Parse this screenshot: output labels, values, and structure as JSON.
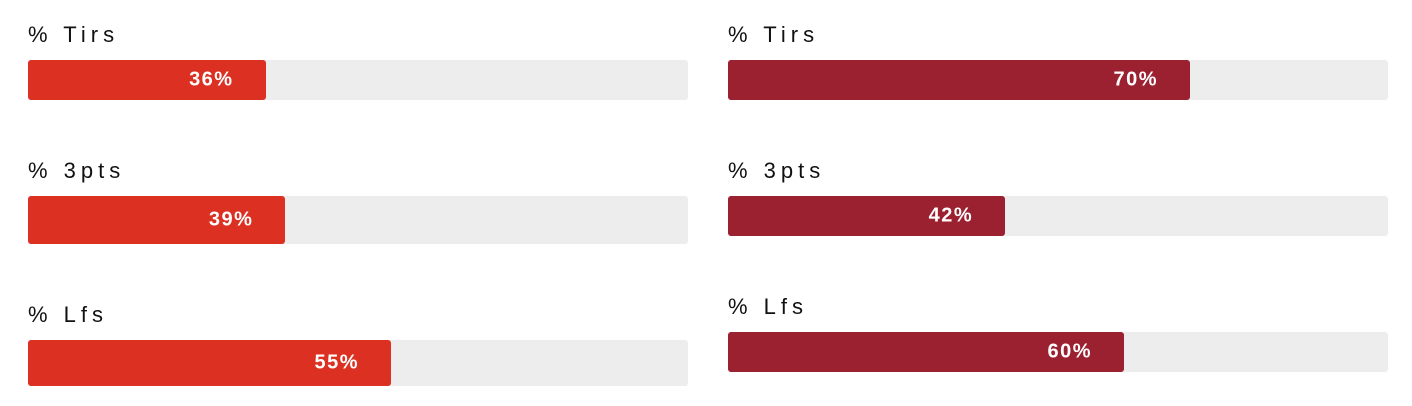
{
  "chart_data": [
    {
      "type": "bar",
      "orientation": "horizontal",
      "color": "#dc3122",
      "track_color": "#ededed",
      "xlim": [
        0,
        100
      ],
      "categories": [
        "% Tirs",
        "% 3pts",
        "% Lfs"
      ],
      "values": [
        36,
        39,
        55
      ],
      "labels": [
        "36%",
        "39%",
        "55%"
      ]
    },
    {
      "type": "bar",
      "orientation": "horizontal",
      "color": "#9b2030",
      "track_color": "#ededed",
      "xlim": [
        0,
        100
      ],
      "categories": [
        "% Tirs",
        "% 3pts",
        "% Lfs"
      ],
      "values": [
        70,
        42,
        60
      ],
      "labels": [
        "70%",
        "42%",
        "60%"
      ]
    }
  ]
}
